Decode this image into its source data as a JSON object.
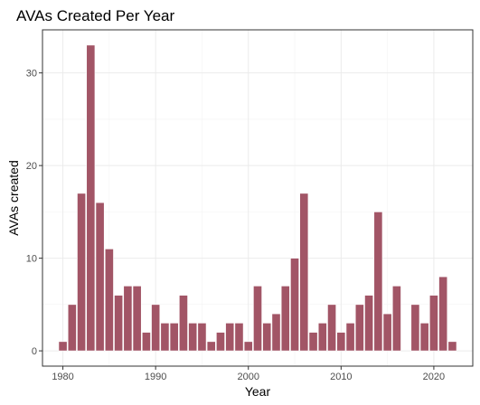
{
  "chart_data": {
    "type": "bar",
    "title": "AVAs Created Per Year",
    "xlabel": "Year",
    "ylabel": "AVAs created",
    "x": [
      1980,
      1981,
      1982,
      1983,
      1984,
      1985,
      1986,
      1987,
      1988,
      1989,
      1990,
      1991,
      1992,
      1993,
      1994,
      1995,
      1996,
      1997,
      1998,
      1999,
      2000,
      2001,
      2002,
      2003,
      2004,
      2005,
      2006,
      2007,
      2008,
      2009,
      2010,
      2011,
      2012,
      2013,
      2014,
      2015,
      2016,
      2018,
      2019,
      2020,
      2021,
      2022
    ],
    "values": [
      1,
      5,
      17,
      33,
      16,
      11,
      6,
      7,
      7,
      2,
      5,
      3,
      3,
      6,
      3,
      3,
      1,
      2,
      3,
      3,
      1,
      7,
      3,
      4,
      7,
      10,
      17,
      2,
      3,
      5,
      2,
      3,
      5,
      6,
      15,
      4,
      7,
      5,
      3,
      6,
      8,
      1
    ],
    "xlim": [
      1977.8,
      2024.2
    ],
    "ylim": [
      -1.65,
      34.65
    ],
    "x_ticks": [
      1980,
      1990,
      2000,
      2010,
      2020
    ],
    "x_tick_labels": [
      "1980",
      "1990",
      "2000",
      "2010",
      "2020"
    ],
    "y_ticks": [
      0,
      10,
      20,
      30
    ],
    "y_tick_labels": [
      "0",
      "10",
      "20",
      "30"
    ],
    "grid": true,
    "bar_color": "#a25566",
    "bar_edge_color": "#ffffff"
  }
}
